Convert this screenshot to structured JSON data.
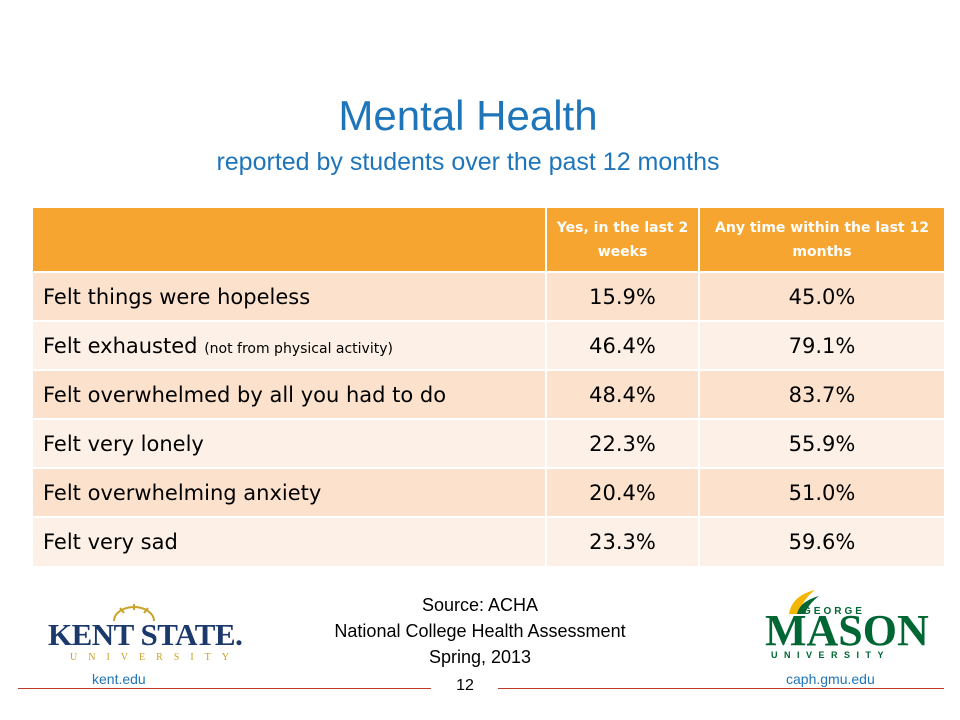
{
  "title": "Mental Health",
  "subtitle": "reported by students over the past 12 months",
  "table": {
    "headers": [
      "",
      "Yes, in the last 2 weeks",
      "Any time within the last 12 months"
    ],
    "rows": [
      {
        "label": "Felt things were hopeless",
        "note": "",
        "two_weeks": "15.9%",
        "twelve_months": "45.0%"
      },
      {
        "label": "Felt exhausted",
        "note": "(not from physical activity)",
        "two_weeks": "46.4%",
        "twelve_months": "79.1%"
      },
      {
        "label": "Felt overwhelmed by all you had to do",
        "note": "",
        "two_weeks": "48.4%",
        "twelve_months": "83.7%"
      },
      {
        "label": "Felt very lonely",
        "note": "",
        "two_weeks": "22.3%",
        "twelve_months": "55.9%"
      },
      {
        "label": "Felt overwhelming anxiety",
        "note": "",
        "two_weeks": "20.4%",
        "twelve_months": "51.0%"
      },
      {
        "label": "Felt very sad",
        "note": "",
        "two_weeks": "23.3%",
        "twelve_months": "59.6%"
      }
    ]
  },
  "source": {
    "line1": "Source: ACHA",
    "line2": "National College Health Assessment",
    "line3": "Spring, 2013"
  },
  "logos": {
    "left": {
      "name": "KENT STATE.",
      "sub": "UNIVERSITY"
    },
    "right": {
      "top": "GEORGE",
      "main": "MASON",
      "sub": "UNIVERSITY"
    }
  },
  "footer": {
    "left_url": "kent.edu",
    "right_url": "caph.gmu.edu",
    "page_number": "12"
  },
  "colors": {
    "title": "#1f75b9",
    "header_fill": "#f6a530",
    "row_odd": "#fce2cc",
    "row_even": "#fdf1e7",
    "rule": "#c0392b",
    "gmu_green": "#006633",
    "ksu_navy": "#1b3a6b",
    "ksu_gold": "#c9a227"
  }
}
